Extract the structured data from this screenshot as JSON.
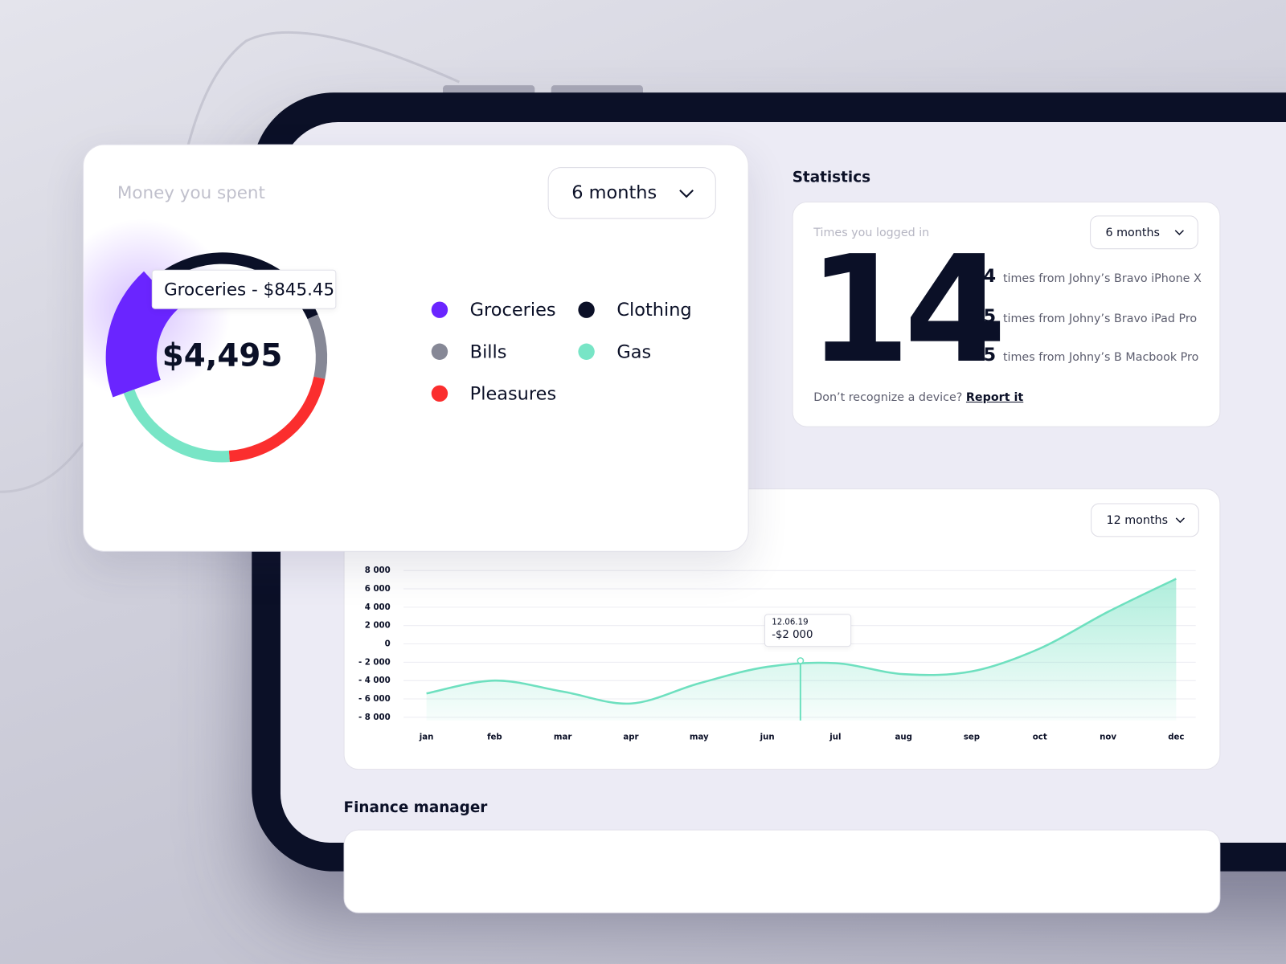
{
  "spending": {
    "title": "Money you spent",
    "period": "6 months",
    "total": "$4,495",
    "tooltip": "Groceries - $845.45",
    "chart": {
      "type": "donut",
      "categories": [
        "Groceries",
        "Clothing",
        "Bills",
        "Pleasures",
        "Gas"
      ],
      "values": [
        845.45,
        1350,
        450,
        925,
        925
      ],
      "colors": [
        "#6a25ff",
        "#0b1027",
        "#868896",
        "#fb2e2e",
        "#78e5c6"
      ]
    }
  },
  "statistics": {
    "heading": "Statistics",
    "title": "Times you logged in",
    "period": "6 months",
    "count": 14,
    "devices": [
      {
        "count": 4,
        "label": "times from Johny’s Bravo iPhone X"
      },
      {
        "count": 5,
        "label": "times from Johny’s Bravo iPad Pro"
      },
      {
        "count": 5,
        "label": "times from Johny’s B Macbook Pro"
      }
    ],
    "footer": "Don’t recognize a device?",
    "link": "Report it"
  },
  "balance": {
    "period": "12 months",
    "tooltip": {
      "date": "12.06.19",
      "value": "-$2 000"
    },
    "chart": {
      "type": "area",
      "categories": [
        "jan",
        "feb",
        "mar",
        "apr",
        "may",
        "jun",
        "jul",
        "aug",
        "sep",
        "oct",
        "nov",
        "dec"
      ],
      "values": [
        -5400,
        -4000,
        -5200,
        -6500,
        -4300,
        -2500,
        -2100,
        -3300,
        -3000,
        -500,
        3500,
        7100
      ],
      "color": "#6ee0bf",
      "ylim": [
        -8000,
        8000
      ],
      "yticks": [
        {
          "value": 8000,
          "label": "8 000"
        },
        {
          "value": 6000,
          "label": "6 000"
        },
        {
          "value": 4000,
          "label": "4 000"
        },
        {
          "value": 2000,
          "label": "2 000"
        },
        0,
        {
          "value": -2000,
          "label": "- 2 000"
        },
        {
          "value": -4000,
          "label": "- 4 000"
        },
        {
          "value": -6000,
          "label": "- 6 000"
        },
        {
          "value": -8000,
          "label": "- 8 000"
        }
      ],
      "grid": true
    }
  },
  "finance": {
    "heading": "Finance manager"
  }
}
